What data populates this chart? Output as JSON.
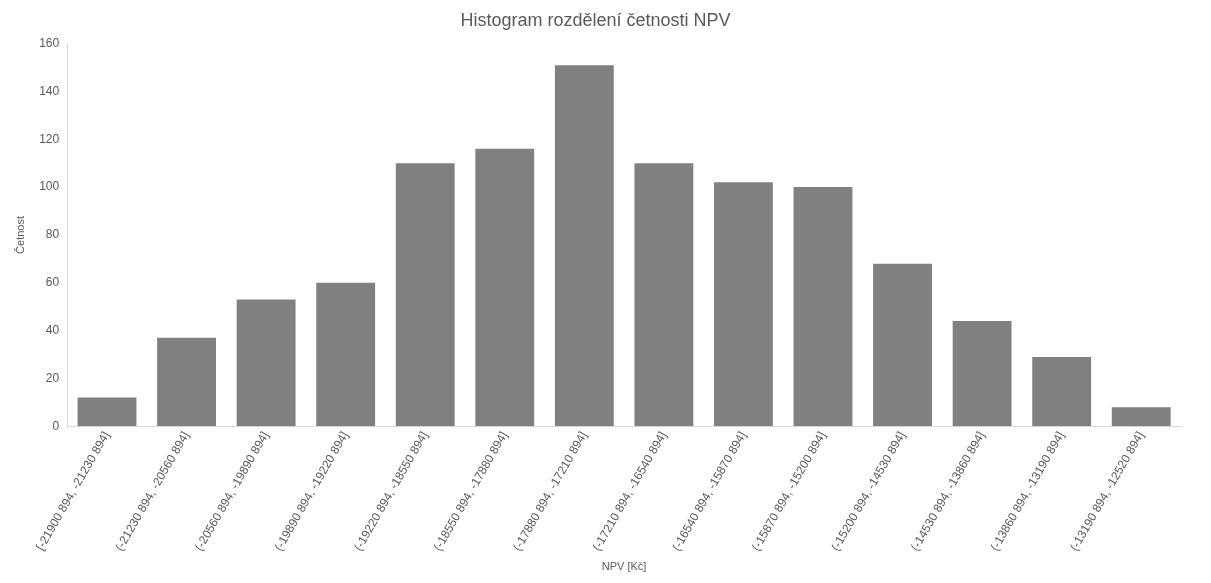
{
  "chart_data": {
    "type": "bar",
    "title": "Histogram rozdělení četnosti NPV",
    "xlabel": "NPV [Kč]",
    "ylabel": "Četnost",
    "categories": [
      "[-21900 894, -21230 894]",
      "(-21230 894, -20560 894]",
      "(-20560 894, -19890 894]",
      "(-19890 894, -19220 894]",
      "(-19220 894, -18550 894]",
      "(-18550 894, -17880 894]",
      "(-17880 894, -17210 894]",
      "(-17210 894, -16540 894]",
      "(-16540 894, -15870 894]",
      "(-15870 894, -15200 894]",
      "(-15200 894, -14530 894]",
      "(-14530 894, -13860 894]",
      "(-13860 894, -13190 894]",
      "(-13190 894, -12520 894]"
    ],
    "values": [
      12,
      37,
      53,
      60,
      110,
      116,
      151,
      110,
      102,
      100,
      68,
      44,
      29,
      8
    ],
    "color": "#808080",
    "ylim": [
      0,
      160
    ],
    "yticks": [
      0,
      20,
      40,
      60,
      80,
      100,
      120,
      140,
      160
    ],
    "grid": false,
    "legend": false
  }
}
